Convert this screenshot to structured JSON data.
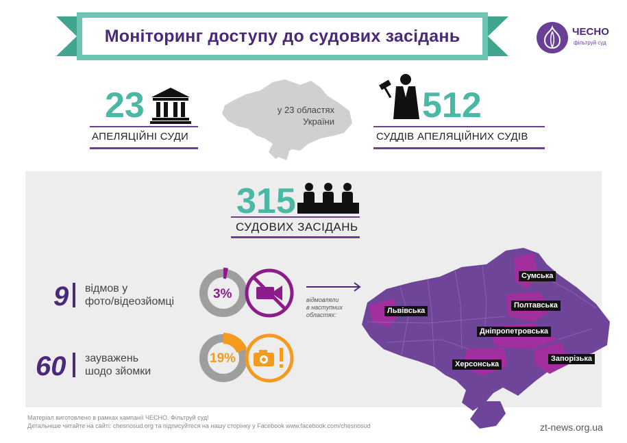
{
  "title": "Моніторинг доступу до судових засідань",
  "logo": {
    "name": "ЧЕСНО",
    "subtitle": "фільтруй суд"
  },
  "appeal_courts": {
    "number": "23",
    "label": "АПЕЛЯЦІЙНІ СУДИ"
  },
  "regions_caption": {
    "line1": "у 23 областях",
    "line2": "України"
  },
  "judges": {
    "number": "512",
    "label": "СУДДІВ АПЕЛЯЦІЙНИХ СУДІВ"
  },
  "hearings": {
    "number": "315",
    "label": "СУДОВИХ ЗАСІДАНЬ"
  },
  "refusals": {
    "number": "9",
    "text_line1": "відмов у",
    "text_line2": "фото/відеозйомці",
    "percent_label": "3%",
    "percent_value": 3,
    "color": "#8b1d8a"
  },
  "remarks": {
    "number": "60",
    "text_line1": "зауважень",
    "text_line2": "шодо зйомки",
    "percent_label": "19%",
    "percent_value": 19,
    "color": "#f39a1f"
  },
  "refused_note": {
    "line1": "відмовляли",
    "line2": "в наступних",
    "line3": "областях:"
  },
  "regions": [
    {
      "name": "Сумська"
    },
    {
      "name": "Львівська"
    },
    {
      "name": "Полтавська"
    },
    {
      "name": "Дніпропетровська"
    },
    {
      "name": "Херсонська"
    },
    {
      "name": "Запорізька"
    }
  ],
  "footer": {
    "line1": "Матеріал виготовлено в рамках кампанії ЧЕСНО. Фільтруй суд!",
    "line2": "Детальніше читайте на сайті: chesnosud.org та підписуйтеся на нашу сторінку у Facebook www.facebook.com/chesnosud"
  },
  "source": "zt-news.org.ua",
  "colors": {
    "teal": "#4bb8a5",
    "purple_dark": "#4a2a77",
    "purple": "#6a3f96",
    "magenta": "#8b1d8a",
    "orange": "#f39a1f",
    "grey": "#9e9e9e",
    "map_purple": "#6e4598"
  }
}
